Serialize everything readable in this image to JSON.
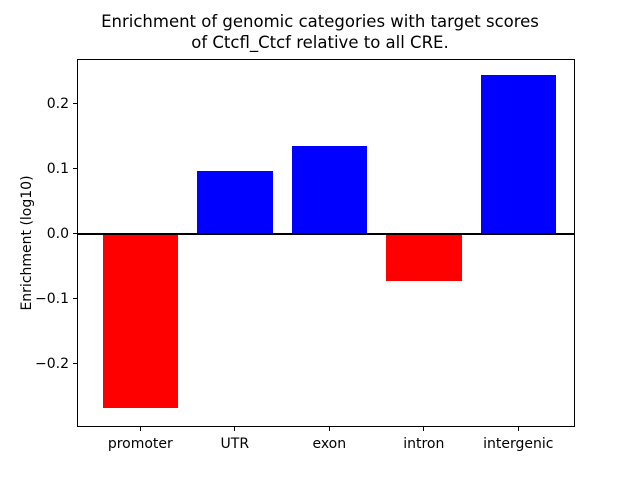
{
  "chart_data": {
    "type": "bar",
    "title": "Enrichment of genomic categories with target scores\nof Ctcfl_Ctcf relative to all CRE.",
    "title_lines": [
      "Enrichment of genomic categories with target scores",
      "of Ctcfl_Ctcf relative to all CRE."
    ],
    "xlabel": "",
    "ylabel": "Enrichment (log10)",
    "categories": [
      "promoter",
      "UTR",
      "exon",
      "intron",
      "intergenic"
    ],
    "values": [
      -0.268,
      0.097,
      0.135,
      -0.072,
      0.244
    ],
    "bar_colors": [
      "#ff0000",
      "#0000ff",
      "#0000ff",
      "#ff0000",
      "#0000ff"
    ],
    "positive_color": "#0000ff",
    "negative_color": "#ff0000",
    "ylim": [
      -0.297,
      0.269
    ],
    "xlim": [
      -0.67,
      4.6
    ],
    "yticks": [
      -0.2,
      -0.1,
      0.0,
      0.1,
      0.2
    ],
    "ytick_labels": [
      "−0.2",
      "−0.1",
      "0.0",
      "0.1",
      "0.2"
    ],
    "bar_width": 0.8,
    "zero_line": true,
    "zero_line_color": "#000000",
    "grid": false,
    "legend": false,
    "background_color": "#ffffff"
  }
}
